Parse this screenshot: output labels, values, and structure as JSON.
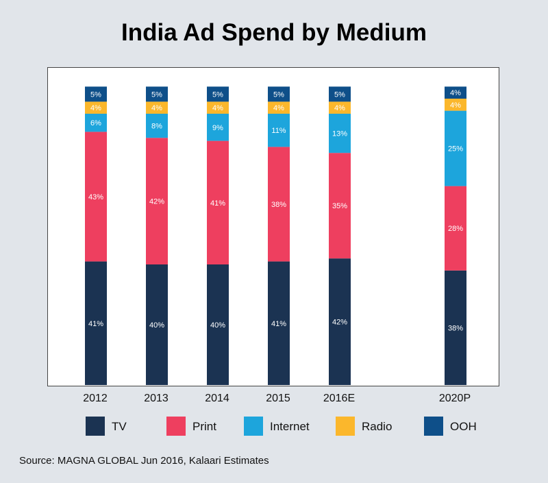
{
  "chart_data": {
    "type": "bar",
    "stacked": true,
    "title": "India Ad Spend by Medium",
    "categories": [
      "2012",
      "2013",
      "2014",
      "2015",
      "2016E",
      "2020P"
    ],
    "series": [
      {
        "name": "TV",
        "color": "#1b3352",
        "values": [
          41,
          40,
          40,
          41,
          42,
          38
        ],
        "labels": [
          "41%",
          "40%",
          "40%",
          "41%",
          "42%",
          "38%"
        ]
      },
      {
        "name": "Print",
        "color": "#ee3f5f",
        "values": [
          43,
          42,
          41,
          38,
          35,
          28
        ],
        "labels": [
          "43%",
          "42%",
          "41%",
          "38%",
          "35%",
          "28%"
        ]
      },
      {
        "name": "Internet",
        "color": "#1da5dc",
        "values": [
          6,
          8,
          9,
          11,
          13,
          25
        ],
        "labels": [
          "6%",
          "8%",
          "9%",
          "11%",
          "13%",
          "25%"
        ]
      },
      {
        "name": "Radio",
        "color": "#fbb72c",
        "values": [
          4,
          4,
          4,
          4,
          4,
          4
        ],
        "labels": [
          "4%",
          "4%",
          "4%",
          "4%",
          "4%",
          "4%"
        ]
      },
      {
        "name": "OOH",
        "color": "#0e4f89",
        "values": [
          5,
          5,
          5,
          5,
          5,
          4
        ],
        "labels": [
          "5%",
          "5%",
          "5%",
          "5%",
          "5%",
          "4%"
        ]
      }
    ],
    "xlabel": "",
    "ylabel": "",
    "ylim": [
      0,
      100
    ],
    "grid": false,
    "legend_position": "bottom"
  },
  "source": "Source: MAGNA GLOBAL Jun 2016, Kalaari Estimates"
}
